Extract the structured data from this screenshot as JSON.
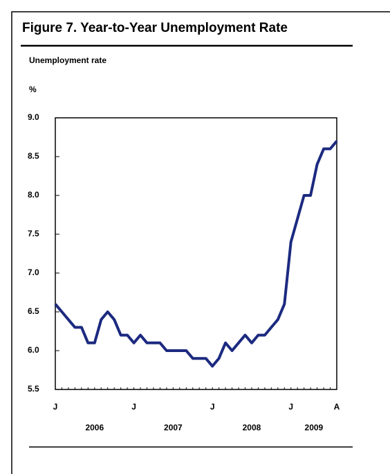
{
  "chart_data": {
    "type": "line",
    "title": "Figure 7.  Year-to-Year Unemployment Rate",
    "subtitle": "Unemployment rate",
    "y_unit": "%",
    "categories": [
      "J",
      null,
      null,
      null,
      null,
      null,
      null,
      null,
      null,
      null,
      null,
      null,
      "J",
      null,
      null,
      null,
      null,
      null,
      null,
      null,
      null,
      null,
      null,
      null,
      "J",
      null,
      null,
      null,
      null,
      null,
      null,
      null,
      null,
      null,
      null,
      null,
      "J",
      null,
      null,
      null,
      null,
      null,
      null,
      "A"
    ],
    "year_labels": [
      "2006",
      "2007",
      "2008",
      "2009"
    ],
    "series": [
      {
        "name": "Unemployment rate",
        "color": "#1c2a80",
        "values": [
          6.6,
          6.5,
          6.4,
          6.3,
          6.3,
          6.1,
          6.1,
          6.4,
          6.5,
          6.4,
          6.2,
          6.2,
          6.1,
          6.2,
          6.1,
          6.1,
          6.1,
          6.0,
          6.0,
          6.0,
          6.0,
          5.9,
          5.9,
          5.9,
          5.8,
          5.9,
          6.1,
          6.0,
          6.1,
          6.2,
          6.1,
          6.2,
          6.2,
          6.3,
          6.4,
          6.6,
          7.4,
          7.7,
          8.0,
          8.0,
          8.4,
          8.6,
          8.6,
          8.7
        ]
      }
    ],
    "ylim": [
      5.5,
      9.0
    ],
    "yticks": [
      {
        "value": 5.5,
        "label": "5.5"
      },
      {
        "value": 6.0,
        "label": "6.0"
      },
      {
        "value": 6.5,
        "label": "6.5"
      },
      {
        "value": 7.0,
        "label": "7.0"
      },
      {
        "value": 7.5,
        "label": "7.5"
      },
      {
        "value": 8.0,
        "label": "8.0"
      },
      {
        "value": 8.5,
        "label": "8.5"
      },
      {
        "value": 9.0,
        "label": "9.0"
      }
    ]
  }
}
